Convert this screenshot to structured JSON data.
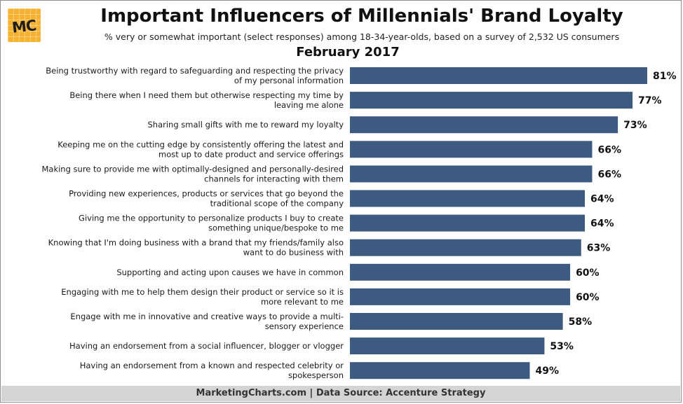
{
  "header": {
    "logo_text": "MC",
    "title": "Important Influencers of Millennials' Brand Loyalty",
    "subtitle": "% very or somewhat important (select responses) among 18-34-year-olds, based on a survey of 2,532 US consumers",
    "date": "February 2017"
  },
  "colors": {
    "bar": "#3d5a80",
    "logo": "#f7b231",
    "footer_bg": "#d4d4d4"
  },
  "chart_data": {
    "type": "bar",
    "orientation": "horizontal",
    "value_suffix": "%",
    "xlim": [
      0,
      81
    ],
    "categories": [
      [
        "Being trustworthy with regard to safeguarding and respecting the privacy",
        "of my personal information"
      ],
      [
        "Being there when I need them but otherwise respecting my time by",
        "leaving me alone"
      ],
      [
        "Sharing small gifts with me to reward my loyalty"
      ],
      [
        "Keeping me on the cutting edge by consistently offering the latest and",
        "most up to date product and service offerings"
      ],
      [
        "Making sure to provide me with optimally-designed and personally-desired",
        "channels for interacting with them"
      ],
      [
        "Providing new experiences, products or services that go beyond the",
        "traditional scope of the company"
      ],
      [
        "Giving me the opportunity to personalize products I buy to create",
        "something unique/bespoke to me"
      ],
      [
        "Knowing that I'm doing business with a brand that my friends/family also",
        "want to do business with"
      ],
      [
        "Supporting and acting upon causes we have in common"
      ],
      [
        "Engaging with me to help them design their product or service so it is",
        "more relevant to me"
      ],
      [
        "Engage with me in innovative and creative ways to provide a multi-",
        "sensory experience"
      ],
      [
        "Having an endorsement from a social influencer, blogger or vlogger"
      ],
      [
        "Having an endorsement from a known and respected celebrity or",
        "spokesperson"
      ]
    ],
    "values": [
      81,
      77,
      73,
      66,
      66,
      64,
      64,
      63,
      60,
      60,
      58,
      53,
      49
    ],
    "grid": false,
    "legend": "none"
  },
  "footer": {
    "source": "MarketingCharts.com | Data Source: Accenture Strategy"
  }
}
